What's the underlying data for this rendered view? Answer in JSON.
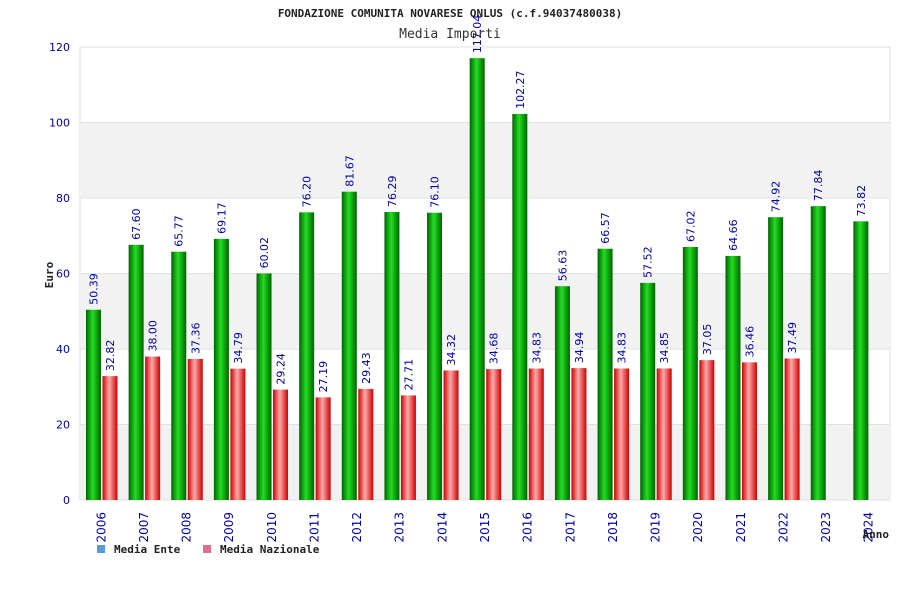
{
  "chart_data": {
    "type": "bar",
    "title": "FONDAZIONE COMUNITA NOVARESE ONLUS (c.f.94037480038)",
    "subtitle": "Media Importi",
    "xlabel": "Anno",
    "ylabel": "Euro",
    "ylim": [
      0,
      120
    ],
    "yticks": [
      0,
      20,
      40,
      60,
      80,
      100,
      120
    ],
    "grid": true,
    "legend_position": "bottom-left",
    "categories": [
      "2006",
      "2007",
      "2008",
      "2009",
      "2010",
      "2011",
      "2012",
      "2013",
      "2014",
      "2015",
      "2016",
      "2017",
      "2018",
      "2019",
      "2020",
      "2021",
      "2022",
      "2023",
      "2024"
    ],
    "series": [
      {
        "name": "Media Ente",
        "legend_color": "#5b9bd5",
        "bar_color": "#00aa00",
        "values": [
          50.39,
          67.6,
          65.77,
          69.17,
          60.02,
          76.2,
          81.67,
          76.29,
          76.1,
          117.04,
          102.27,
          56.63,
          66.57,
          57.52,
          67.02,
          64.66,
          74.92,
          77.84,
          73.82
        ],
        "labels": [
          "50.39",
          "67.60",
          "65.77",
          "69.17",
          "60.02",
          "76.20",
          "81.67",
          "76.29",
          "76.10",
          "117.04",
          "102.27",
          "56.63",
          "66.57",
          "57.52",
          "67.02",
          "64.66",
          "74.92",
          "77.84",
          "73.82"
        ]
      },
      {
        "name": "Media Nazionale",
        "legend_color": "#e07090",
        "bar_color": "#dd2222",
        "values": [
          32.82,
          38.0,
          37.36,
          34.79,
          29.24,
          27.19,
          29.43,
          27.71,
          34.32,
          34.68,
          34.83,
          34.94,
          34.83,
          34.85,
          37.05,
          36.46,
          37.49,
          null,
          null
        ],
        "labels": [
          "32.82",
          "38.00",
          "37.36",
          "34.79",
          "29.24",
          "27.19",
          "29.43",
          "27.71",
          "34.32",
          "34.68",
          "34.83",
          "34.94",
          "34.83",
          "34.85",
          "37.05",
          "36.46",
          "37.49",
          null,
          null
        ]
      }
    ]
  }
}
